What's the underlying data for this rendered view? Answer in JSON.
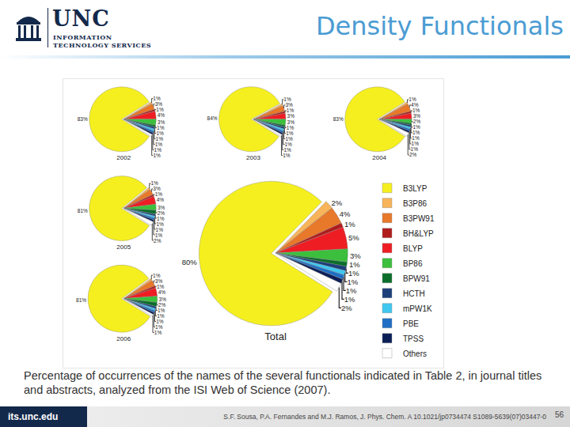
{
  "header": {
    "logo": "UNC",
    "logo_sub": [
      "INFORMATION",
      "TECHNOLOGY SERVICES"
    ],
    "title": "Density Functionals"
  },
  "caption": "Percentage of occurrences of the names of the several functionals indicated in Table 2, in journal titles and abstracts, analyzed from the ISI Web of Science (2007).",
  "footer": {
    "site": "its.unc.edu",
    "citation": "S.F. Sousa, P.A. Fernandes and M.J. Ramos, J. Phys. Chem. A 10.1021/jp0734474 S1089-5639(07)03447-0",
    "page": "56"
  },
  "chart_data": [
    {
      "type": "pie",
      "title": "2002",
      "data_labels": true,
      "categories": [
        "B3LYP",
        "B3P86",
        "B3PW91",
        "BH&LYP",
        "BLYP",
        "BP86",
        "BPW91",
        "HCTH",
        "mPW1K",
        "PBE",
        "TPSS",
        "Others"
      ],
      "values": [
        83,
        1,
        3,
        1,
        4,
        3,
        1,
        1,
        1,
        1,
        1,
        1
      ],
      "value_labels": [
        "83%",
        "1%",
        "3%",
        "1%",
        "4%",
        "3%",
        "1%",
        "1%",
        "1%",
        "1%",
        "1%",
        "1%"
      ],
      "colors": [
        "#f5ef1f",
        "#f7b45a",
        "#e8782a",
        "#b01c1c",
        "#ee1d23",
        "#3cbf3c",
        "#0a6e2a",
        "#1d3f7a",
        "#3fc7f0",
        "#1f6fc4",
        "#0c1f57",
        "#ffffff"
      ]
    },
    {
      "type": "pie",
      "title": "2003",
      "data_labels": true,
      "categories": [
        "B3LYP",
        "B3P86",
        "B3PW91",
        "BH&LYP",
        "BLYP",
        "BP86",
        "BPW91",
        "HCTH",
        "mPW1K",
        "PBE",
        "TPSS",
        "Others"
      ],
      "values": [
        84,
        1,
        3,
        1,
        3,
        3,
        1,
        1,
        1,
        1,
        1,
        1
      ],
      "value_labels": [
        "84%",
        "1%",
        "3%",
        "1%",
        "3%",
        "3%",
        "1%",
        "1%",
        "1%",
        "1%",
        "1%",
        "1%"
      ],
      "colors": [
        "#f5ef1f",
        "#f7b45a",
        "#e8782a",
        "#b01c1c",
        "#ee1d23",
        "#3cbf3c",
        "#0a6e2a",
        "#1d3f7a",
        "#3fc7f0",
        "#1f6fc4",
        "#0c1f57",
        "#ffffff"
      ]
    },
    {
      "type": "pie",
      "title": "2004",
      "data_labels": true,
      "categories": [
        "B3LYP",
        "B3P86",
        "B3PW91",
        "BH&LYP",
        "BLYP",
        "BP86",
        "BPW91",
        "HCTH",
        "mPW1K",
        "PBE",
        "TPSS",
        "Others"
      ],
      "values": [
        83,
        1,
        4,
        1,
        3,
        2,
        1,
        1,
        1,
        1,
        1,
        2
      ],
      "value_labels": [
        "83%",
        "1%",
        "4%",
        "1%",
        "3%",
        "2%",
        "1%",
        "1%",
        "1%",
        "1%",
        "1%",
        "2%"
      ],
      "colors": [
        "#f5ef1f",
        "#f7b45a",
        "#e8782a",
        "#b01c1c",
        "#ee1d23",
        "#3cbf3c",
        "#0a6e2a",
        "#1d3f7a",
        "#3fc7f0",
        "#1f6fc4",
        "#0c1f57",
        "#ffffff"
      ]
    },
    {
      "type": "pie",
      "title": "2005",
      "data_labels": true,
      "categories": [
        "B3LYP",
        "B3P86",
        "B3PW91",
        "BH&LYP",
        "BLYP",
        "BP86",
        "BPW91",
        "HCTH",
        "mPW1K",
        "PBE",
        "TPSS",
        "Others"
      ],
      "values": [
        81,
        1,
        3,
        1,
        4,
        3,
        2,
        1,
        1,
        1,
        1,
        2
      ],
      "value_labels": [
        "81%",
        "1%",
        "3%",
        "1%",
        "4%",
        "3%",
        "2%",
        "1%",
        "1%",
        "1%",
        "1%",
        "2%"
      ],
      "colors": [
        "#f5ef1f",
        "#f7b45a",
        "#e8782a",
        "#b01c1c",
        "#ee1d23",
        "#3cbf3c",
        "#0a6e2a",
        "#1d3f7a",
        "#3fc7f0",
        "#1f6fc4",
        "#0c1f57",
        "#ffffff"
      ]
    },
    {
      "type": "pie",
      "title": "2006",
      "data_labels": true,
      "categories": [
        "B3LYP",
        "B3P86",
        "B3PW91",
        "BH&LYP",
        "BLYP",
        "BP86",
        "BPW91",
        "HCTH",
        "mPW1K",
        "PBE",
        "TPSS",
        "Others"
      ],
      "values": [
        81,
        1,
        3,
        1,
        4,
        3,
        2,
        1,
        1,
        1,
        1,
        1
      ],
      "value_labels": [
        "81%",
        "1%",
        "3%",
        "1%",
        "4%",
        "3%",
        "2%",
        "1%",
        "1%",
        "1%",
        "1%",
        "1%"
      ],
      "colors": [
        "#f5ef1f",
        "#f7b45a",
        "#e8782a",
        "#b01c1c",
        "#ee1d23",
        "#3cbf3c",
        "#0a6e2a",
        "#1d3f7a",
        "#3fc7f0",
        "#1f6fc4",
        "#0c1f57",
        "#ffffff"
      ]
    },
    {
      "type": "pie",
      "title": "Total",
      "data_labels": true,
      "legend": "right",
      "categories": [
        "B3LYP",
        "B3P86",
        "B3PW91",
        "BH&LYP",
        "BLYP",
        "BP86",
        "BPW91",
        "HCTH",
        "mPW1K",
        "PBE",
        "TPSS",
        "Others"
      ],
      "values": [
        80,
        2,
        4,
        1,
        5,
        3,
        1,
        1,
        1,
        1,
        1,
        2
      ],
      "value_labels": [
        "80%",
        "2%",
        "4%",
        "1%",
        "5%",
        "3%",
        "1%",
        "1%",
        "1%",
        "1%",
        "1%",
        "2%"
      ],
      "colors": [
        "#f5ef1f",
        "#f7b45a",
        "#e8782a",
        "#b01c1c",
        "#ee1d23",
        "#3cbf3c",
        "#0a6e2a",
        "#1d3f7a",
        "#3fc7f0",
        "#1f6fc4",
        "#0c1f57",
        "#ffffff"
      ]
    }
  ]
}
